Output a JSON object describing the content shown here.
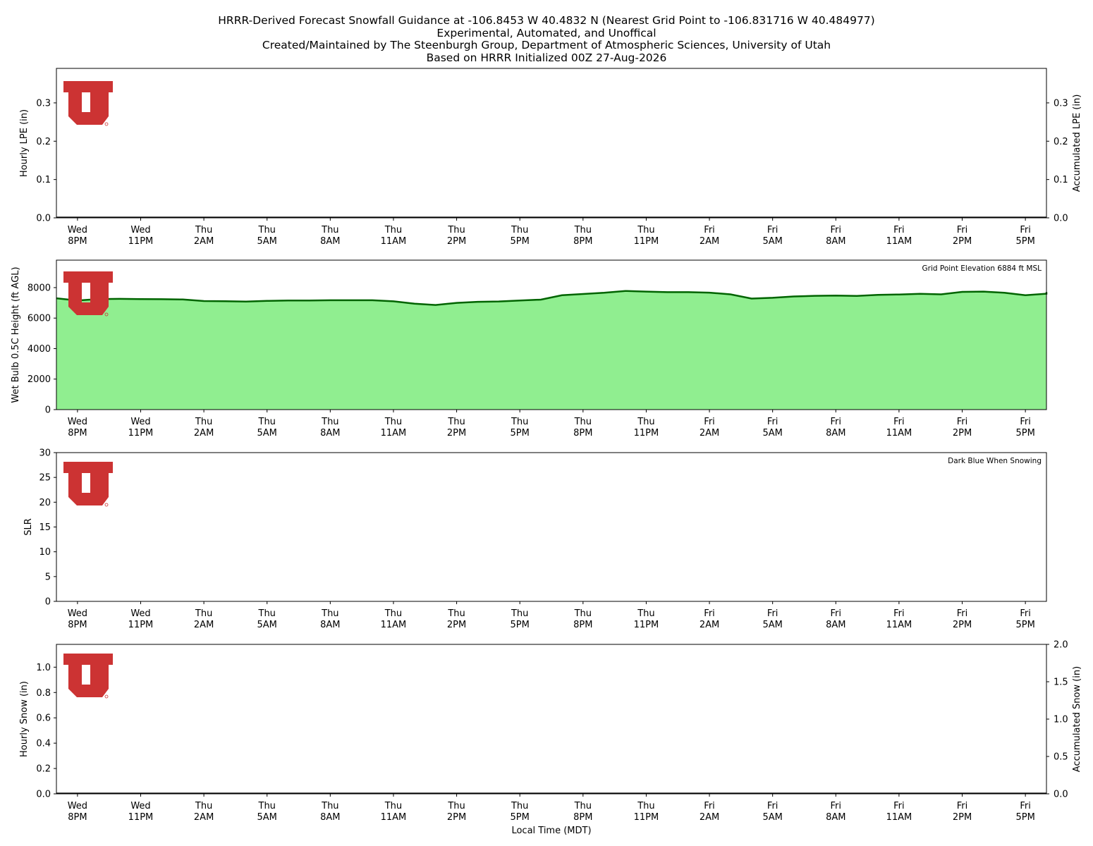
{
  "title": {
    "line1": "HRRR-Derived Forecast Snowfall Guidance at -106.8453 W 40.4832 N (Nearest Grid Point to -106.831716 W 40.484977)",
    "line2": "Experimental, Automated, and Unoffical",
    "line3": "Created/Maintained by The Steenburgh Group, Department of Atmospheric Sciences, University of Utah",
    "line4": "Based on HRRR Initialized 00Z 27-Aug-2026"
  },
  "xlabel": "Local Time (MDT)",
  "colors": {
    "logo_red": "#cc3333",
    "fill_green": "#90ee90",
    "line_dark_green": "#006400",
    "axis": "#000000"
  },
  "chart_data": [
    {
      "type": "bar",
      "name": "hourly-lpe",
      "ylabel": "Hourly LPE (in)",
      "ylabel_right": "Accumulated LPE (in)",
      "ylim": [
        0,
        0.39
      ],
      "yticks": [
        0.0,
        0.1,
        0.2,
        0.3
      ],
      "ytick_labels": [
        "0.0",
        "0.1",
        "0.2",
        "0.3"
      ],
      "yticks_right": [
        0.0,
        0.1,
        0.2,
        0.3
      ],
      "ytick_labels_right": [
        "0.0",
        "0.1",
        "0.2",
        "0.3"
      ],
      "ylim_right": [
        0,
        0.39
      ],
      "values": [],
      "accumulated": 0.0
    },
    {
      "type": "area",
      "name": "wet-bulb-height",
      "ylabel": "Wet Bulb 0.5C Height (ft AGL)",
      "annotation": "Grid Point Elevation 6884 ft MSL",
      "ylim": [
        0,
        9800
      ],
      "yticks": [
        0,
        2000,
        4000,
        6000,
        8000
      ],
      "ytick_labels": [
        "0",
        "2000",
        "4000",
        "6000",
        "8000"
      ],
      "x_hours": [
        -1,
        0,
        1,
        2,
        3,
        4,
        5,
        6,
        7,
        8,
        9,
        10,
        11,
        12,
        13,
        14,
        15,
        16,
        17,
        18,
        19,
        20,
        21,
        22,
        23,
        24,
        25,
        26,
        27,
        28,
        29,
        30,
        31,
        32,
        33,
        34,
        35,
        36,
        37,
        38,
        39,
        40,
        41,
        42,
        43,
        44,
        45,
        46,
        47
      ],
      "values": [
        7300,
        7150,
        7250,
        7260,
        7250,
        7240,
        7220,
        7120,
        7110,
        7080,
        7130,
        7150,
        7150,
        7170,
        7170,
        7170,
        7100,
        6950,
        6860,
        7000,
        7070,
        7090,
        7150,
        7210,
        7500,
        7580,
        7660,
        7780,
        7740,
        7700,
        7700,
        7670,
        7560,
        7280,
        7330,
        7420,
        7460,
        7480,
        7450,
        7520,
        7550,
        7590,
        7560,
        7720,
        7740,
        7660,
        7500,
        7600,
        7700
      ]
    },
    {
      "type": "bar",
      "name": "slr",
      "ylabel": "SLR",
      "annotation": "Dark Blue When Snowing",
      "ylim": [
        0,
        30
      ],
      "yticks": [
        0,
        5,
        10,
        15,
        20,
        25,
        30
      ],
      "ytick_labels": [
        "0",
        "5",
        "10",
        "15",
        "20",
        "25",
        "30"
      ],
      "values": []
    },
    {
      "type": "bar",
      "name": "hourly-snow",
      "ylabel": "Hourly Snow (in)",
      "ylabel_right": "Accumulated Snow (in)",
      "ylim": [
        0,
        1.18
      ],
      "yticks": [
        0.0,
        0.2,
        0.4,
        0.6,
        0.8,
        1.0
      ],
      "ytick_labels": [
        "0.0",
        "0.2",
        "0.4",
        "0.6",
        "0.8",
        "1.0"
      ],
      "ylim_right": [
        0,
        2.0
      ],
      "yticks_right": [
        0.0,
        0.5,
        1.0,
        1.5,
        2.0
      ],
      "ytick_labels_right": [
        "0.0",
        "0.5",
        "1.0",
        "1.5",
        "2.0"
      ],
      "values": [],
      "accumulated": 0.0
    }
  ],
  "x_axis": {
    "range_hours": [
      -1,
      46
    ],
    "tick_hours": [
      0,
      3,
      6,
      9,
      12,
      15,
      18,
      21,
      24,
      27,
      30,
      33,
      36,
      39,
      42,
      45
    ],
    "tick_labels": [
      [
        "Wed",
        "8PM"
      ],
      [
        "Wed",
        "11PM"
      ],
      [
        "Thu",
        "2AM"
      ],
      [
        "Thu",
        "5AM"
      ],
      [
        "Thu",
        "8AM"
      ],
      [
        "Thu",
        "11AM"
      ],
      [
        "Thu",
        "2PM"
      ],
      [
        "Thu",
        "5PM"
      ],
      [
        "Thu",
        "8PM"
      ],
      [
        "Thu",
        "11PM"
      ],
      [
        "Fri",
        "2AM"
      ],
      [
        "Fri",
        "5AM"
      ],
      [
        "Fri",
        "8AM"
      ],
      [
        "Fri",
        "11AM"
      ],
      [
        "Fri",
        "2PM"
      ],
      [
        "Fri",
        "5PM"
      ]
    ]
  }
}
